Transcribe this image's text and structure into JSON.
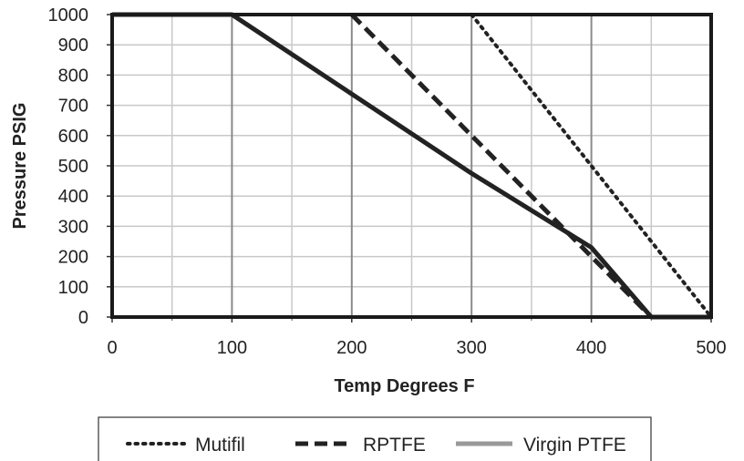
{
  "chart_data": {
    "type": "line",
    "xlabel": "Temp Degrees F",
    "ylabel": "Pressure PSIG",
    "xlim": [
      0,
      500
    ],
    "ylim": [
      0,
      1000
    ],
    "xticks": [
      0,
      100,
      200,
      300,
      400,
      500
    ],
    "yticks": [
      0,
      100,
      200,
      300,
      400,
      500,
      600,
      700,
      800,
      900,
      1000
    ],
    "x_minor_grid_step": 50,
    "y_grid_step": 100,
    "grid": true,
    "legend_position": "bottom",
    "series": [
      {
        "name": "Mutifil",
        "style": "dotted",
        "color": "#222222",
        "points": [
          [
            300,
            1000
          ],
          [
            500,
            0
          ]
        ]
      },
      {
        "name": "RPTFE",
        "style": "dashed",
        "color": "#222222",
        "points": [
          [
            200,
            1000
          ],
          [
            450,
            0
          ]
        ]
      },
      {
        "name": "Virgin PTFE",
        "style": "solid",
        "color": "#222222",
        "legend_color": "#999999",
        "points": [
          [
            0,
            1000
          ],
          [
            100,
            1000
          ],
          [
            300,
            475
          ],
          [
            400,
            230
          ],
          [
            450,
            0
          ],
          [
            500,
            0
          ]
        ]
      }
    ]
  }
}
